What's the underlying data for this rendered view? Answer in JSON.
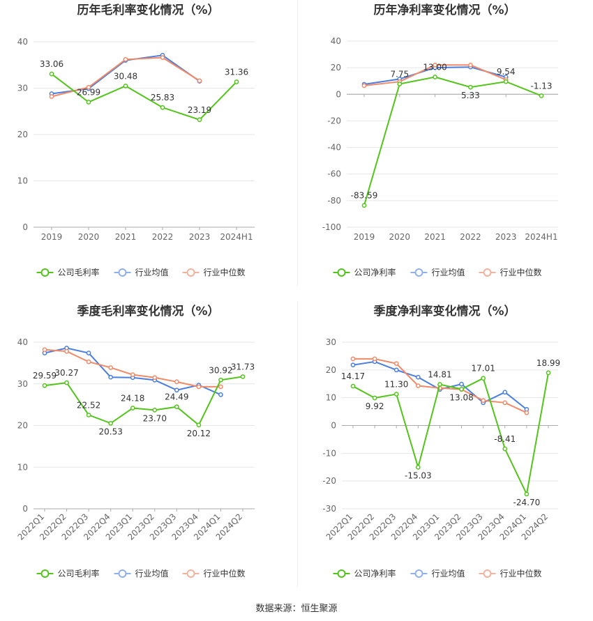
{
  "source_text": "数据来源：恒生聚源",
  "colors": {
    "company": "#52c41a",
    "avg": "#4a7ee0",
    "median": "#f08a68",
    "grid": "#e6e6e6",
    "axis": "#666666",
    "label": "#333333",
    "title": "#333333"
  },
  "chart_data": [
    {
      "type": "line",
      "title": "历年毛利率变化情况（%）",
      "categories": [
        "2019",
        "2020",
        "2021",
        "2022",
        "2023",
        "2024H1"
      ],
      "ylim": [
        0,
        40
      ],
      "yticks": [
        "0",
        "10",
        "20",
        "30",
        "40"
      ],
      "grid": true,
      "legend_position": "bottom",
      "rotate_x_labels": false,
      "series": [
        {
          "name": "公司毛利率",
          "color": "#52c41a",
          "values": [
            33.06,
            26.99,
            30.48,
            25.83,
            23.19,
            31.36
          ],
          "labels": [
            "33.06",
            "26.99",
            "30.48",
            "25.83",
            "23.19",
            "31.36"
          ]
        },
        {
          "name": "行业均值",
          "color": "#4a7ee0",
          "values": [
            28.8,
            29.9,
            36.0,
            37.1,
            31.5,
            null
          ]
        },
        {
          "name": "行业中位数",
          "color": "#f08a68",
          "values": [
            28.2,
            30.2,
            36.2,
            36.6,
            31.6,
            null
          ]
        }
      ]
    },
    {
      "type": "line",
      "title": "历年净利率变化情况（%）",
      "categories": [
        "2019",
        "2020",
        "2021",
        "2022",
        "2023",
        "2024H1"
      ],
      "ylim": [
        -100,
        40
      ],
      "yticks": [
        "-100",
        "-80",
        "-60",
        "-40",
        "-20",
        "0",
        "20",
        "40"
      ],
      "grid": true,
      "legend_position": "bottom",
      "rotate_x_labels": false,
      "series": [
        {
          "name": "公司净利率",
          "color": "#52c41a",
          "values": [
            -83.59,
            7.75,
            13.0,
            5.33,
            9.54,
            -1.13
          ],
          "labels": [
            "-83.59",
            "7.75",
            "13.00",
            "5.33",
            "9.54",
            "-1.13"
          ]
        },
        {
          "name": "行业均值",
          "color": "#4a7ee0",
          "values": [
            7.5,
            11.5,
            20.0,
            20.5,
            13.0,
            null
          ]
        },
        {
          "name": "行业中位数",
          "color": "#f08a68",
          "values": [
            6.5,
            9.5,
            22.0,
            22.0,
            11.0,
            null
          ]
        }
      ]
    },
    {
      "type": "line",
      "title": "季度毛利率变化情况（%）",
      "categories": [
        "2022Q1",
        "2022Q2",
        "2022Q3",
        "2022Q4",
        "2023Q1",
        "2023Q2",
        "2023Q3",
        "2023Q4",
        "2024Q1",
        "2024Q2"
      ],
      "ylim": [
        0,
        40
      ],
      "yticks": [
        "0",
        "10",
        "20",
        "30",
        "40"
      ],
      "grid": true,
      "legend_position": "bottom",
      "rotate_x_labels": true,
      "series": [
        {
          "name": "公司毛利率",
          "color": "#52c41a",
          "values": [
            29.59,
            30.27,
            22.52,
            20.53,
            24.18,
            23.7,
            24.49,
            20.12,
            30.92,
            31.73
          ],
          "labels": [
            "29.59",
            "30.27",
            "22.52",
            "20.53",
            "24.18",
            "23.70",
            "24.49",
            "20.12",
            "30.92",
            "31.73"
          ]
        },
        {
          "name": "行业均值",
          "color": "#4a7ee0",
          "values": [
            37.4,
            38.6,
            37.4,
            31.6,
            31.5,
            30.9,
            28.5,
            29.7,
            27.4,
            null
          ]
        },
        {
          "name": "行业中位数",
          "color": "#f08a68",
          "values": [
            38.2,
            37.8,
            35.3,
            33.9,
            32.2,
            31.5,
            30.5,
            29.3,
            29.3,
            null
          ]
        }
      ]
    },
    {
      "type": "line",
      "title": "季度净利率变化情况（%）",
      "categories": [
        "2022Q1",
        "2022Q2",
        "2022Q3",
        "2022Q4",
        "2023Q1",
        "2023Q2",
        "2023Q3",
        "2023Q4",
        "2024Q1",
        "2024Q2"
      ],
      "ylim": [
        -30,
        30
      ],
      "yticks": [
        "-30",
        "-20",
        "-10",
        "0",
        "10",
        "20",
        "30"
      ],
      "grid": true,
      "legend_position": "bottom",
      "rotate_x_labels": true,
      "series": [
        {
          "name": "公司净利率",
          "color": "#52c41a",
          "values": [
            14.17,
            9.92,
            11.3,
            -15.03,
            14.81,
            13.08,
            17.01,
            -8.41,
            -24.7,
            18.99
          ],
          "labels": [
            "14.17",
            "9.92",
            "11.30",
            "-15.03",
            "14.81",
            "13.08",
            "17.01",
            "-8.41",
            "-24.70",
            "18.99"
          ]
        },
        {
          "name": "行业均值",
          "color": "#4a7ee0",
          "values": [
            21.8,
            23.0,
            20.0,
            17.4,
            13.0,
            14.9,
            8.2,
            12.0,
            5.8,
            null
          ]
        },
        {
          "name": "行业中位数",
          "color": "#f08a68",
          "values": [
            24.0,
            24.0,
            22.3,
            14.3,
            13.5,
            13.0,
            9.0,
            8.2,
            4.6,
            null
          ]
        }
      ]
    }
  ]
}
